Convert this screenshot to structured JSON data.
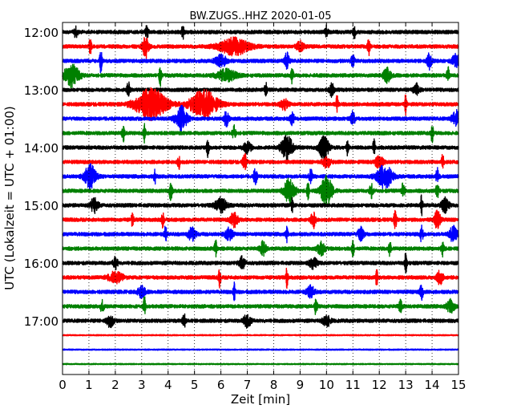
{
  "chart_data": {
    "type": "line",
    "title": "BW.ZUGS..HHZ 2020-01-05",
    "xlabel": "Zeit  [min]",
    "ylabel": "UTC (Lokalzeit = UTC + 01:00)",
    "xlim": [
      0,
      15
    ],
    "x_ticks": [
      "0",
      "1",
      "2",
      "3",
      "4",
      "5",
      "6",
      "7",
      "8",
      "9",
      "10",
      "11",
      "12",
      "13",
      "14",
      "15"
    ],
    "y_ticks": [
      "12:00",
      "13:00",
      "14:00",
      "15:00",
      "16:00",
      "17:00"
    ],
    "grid": "vertical dotted lines at each minute",
    "colors": [
      "#000000",
      "#ff0000",
      "#0000ff",
      "#008000"
    ],
    "rows": [
      {
        "start": "12:00",
        "color": "#000000",
        "events": [
          [
            4.55,
            1.9,
            0.03
          ],
          [
            3.2,
            1.2,
            0.04
          ],
          [
            10.0,
            1.0,
            0.04
          ],
          [
            11.05,
            1.5,
            0.03
          ],
          [
            0.5,
            0.9,
            0.05
          ]
        ]
      },
      {
        "start": "12:15",
        "color": "#ff0000",
        "events": [
          [
            3.15,
            1.9,
            0.08
          ],
          [
            1.05,
            1.6,
            0.03
          ],
          [
            6.5,
            1.4,
            0.4
          ],
          [
            11.6,
            1.6,
            0.03
          ],
          [
            9.0,
            0.9,
            0.1
          ]
        ]
      },
      {
        "start": "12:30",
        "color": "#0000ff",
        "events": [
          [
            1.45,
            2.1,
            0.03
          ],
          [
            8.5,
            1.4,
            0.06
          ],
          [
            13.9,
            1.4,
            0.06
          ],
          [
            6.0,
            1.0,
            0.15
          ],
          [
            11.0,
            1.0,
            0.05
          ],
          [
            14.9,
            1.2,
            0.1
          ]
        ]
      },
      {
        "start": "12:45",
        "color": "#008000",
        "events": [
          [
            0.35,
            1.9,
            0.2
          ],
          [
            3.7,
            1.8,
            0.03
          ],
          [
            8.7,
            1.4,
            0.03
          ],
          [
            12.3,
            1.2,
            0.1
          ],
          [
            14.6,
            1.8,
            0.03
          ],
          [
            6.2,
            1.0,
            0.25
          ]
        ]
      },
      {
        "start": "13:00",
        "color": "#000000",
        "events": [
          [
            2.5,
            1.5,
            0.04
          ],
          [
            7.7,
            1.3,
            0.03
          ],
          [
            10.2,
            1.1,
            0.06
          ],
          [
            13.4,
            1.0,
            0.08
          ]
        ]
      },
      {
        "start": "13:15",
        "color": "#ff0000",
        "events": [
          [
            3.35,
            2.7,
            0.4
          ],
          [
            5.35,
            2.4,
            0.35
          ],
          [
            10.4,
            1.5,
            0.03
          ],
          [
            13.0,
            1.7,
            0.03
          ],
          [
            8.4,
            0.9,
            0.1
          ]
        ]
      },
      {
        "start": "13:30",
        "color": "#0000ff",
        "events": [
          [
            4.5,
            2.1,
            0.15
          ],
          [
            6.2,
            1.4,
            0.06
          ],
          [
            8.7,
            1.3,
            0.05
          ],
          [
            11.0,
            1.2,
            0.06
          ],
          [
            14.9,
            1.4,
            0.1
          ]
        ]
      },
      {
        "start": "13:45",
        "color": "#008000",
        "events": [
          [
            2.3,
            1.7,
            0.03
          ],
          [
            3.1,
            1.5,
            0.03
          ],
          [
            6.5,
            1.2,
            0.05
          ],
          [
            14.0,
            1.7,
            0.03
          ]
        ]
      },
      {
        "start": "14:00",
        "color": "#000000",
        "events": [
          [
            8.5,
            2.1,
            0.15
          ],
          [
            9.9,
            2.1,
            0.12
          ],
          [
            5.5,
            1.6,
            0.03
          ],
          [
            11.8,
            1.5,
            0.03
          ],
          [
            10.8,
            1.3,
            0.03
          ],
          [
            7.0,
            1.0,
            0.1
          ]
        ]
      },
      {
        "start": "14:15",
        "color": "#ff0000",
        "events": [
          [
            4.4,
            1.6,
            0.03
          ],
          [
            6.9,
            1.4,
            0.05
          ],
          [
            12.0,
            1.2,
            0.1
          ],
          [
            14.4,
            1.3,
            0.03
          ],
          [
            10.0,
            1.0,
            0.1
          ]
        ]
      },
      {
        "start": "14:30",
        "color": "#0000ff",
        "events": [
          [
            1.05,
            2.0,
            0.15
          ],
          [
            12.2,
            2.0,
            0.2
          ],
          [
            3.5,
            1.5,
            0.03
          ],
          [
            7.3,
            1.3,
            0.05
          ],
          [
            9.4,
            1.3,
            0.04
          ],
          [
            14.2,
            1.4,
            0.04
          ]
        ]
      },
      {
        "start": "14:45",
        "color": "#008000",
        "events": [
          [
            10.0,
            2.6,
            0.15
          ],
          [
            8.6,
            2.1,
            0.15
          ],
          [
            4.1,
            1.6,
            0.04
          ],
          [
            9.3,
            1.6,
            0.03
          ],
          [
            12.9,
            1.4,
            0.04
          ],
          [
            14.2,
            1.5,
            0.04
          ],
          [
            11.7,
            1.2,
            0.05
          ]
        ]
      },
      {
        "start": "15:00",
        "color": "#000000",
        "events": [
          [
            1.2,
            1.2,
            0.1
          ],
          [
            6.0,
            1.2,
            0.15
          ],
          [
            8.7,
            1.6,
            0.03
          ],
          [
            13.6,
            1.7,
            0.03
          ],
          [
            14.5,
            1.2,
            0.1
          ]
        ]
      },
      {
        "start": "15:15",
        "color": "#ff0000",
        "events": [
          [
            2.65,
            1.5,
            0.03
          ],
          [
            3.8,
            1.6,
            0.03
          ],
          [
            6.5,
            1.2,
            0.1
          ],
          [
            9.5,
            1.5,
            0.06
          ],
          [
            12.6,
            1.4,
            0.04
          ],
          [
            14.2,
            1.6,
            0.08
          ]
        ]
      },
      {
        "start": "15:30",
        "color": "#0000ff",
        "events": [
          [
            3.9,
            1.5,
            0.03
          ],
          [
            4.9,
            1.1,
            0.1
          ],
          [
            6.3,
            1.0,
            0.1
          ],
          [
            8.5,
            1.3,
            0.03
          ],
          [
            11.3,
            1.2,
            0.08
          ],
          [
            13.6,
            1.3,
            0.04
          ],
          [
            14.8,
            1.3,
            0.1
          ]
        ]
      },
      {
        "start": "15:45",
        "color": "#008000",
        "events": [
          [
            5.8,
            1.6,
            0.03
          ],
          [
            7.6,
            1.2,
            0.08
          ],
          [
            11.0,
            1.5,
            0.03
          ],
          [
            12.4,
            1.5,
            0.03
          ],
          [
            14.4,
            1.3,
            0.04
          ],
          [
            9.8,
            1.1,
            0.1
          ]
        ]
      },
      {
        "start": "16:00",
        "color": "#000000",
        "events": [
          [
            13.0,
            1.8,
            0.03
          ],
          [
            2.0,
            1.1,
            0.06
          ],
          [
            6.8,
            1.0,
            0.08
          ],
          [
            9.5,
            0.9,
            0.1
          ]
        ]
      },
      {
        "start": "16:15",
        "color": "#ff0000",
        "events": [
          [
            5.95,
            1.6,
            0.03
          ],
          [
            8.5,
            1.6,
            0.03
          ],
          [
            11.9,
            1.4,
            0.03
          ],
          [
            14.3,
            1.2,
            0.08
          ],
          [
            2.0,
            0.9,
            0.2
          ]
        ]
      },
      {
        "start": "16:30",
        "color": "#0000ff",
        "events": [
          [
            6.5,
            1.6,
            0.03
          ],
          [
            13.6,
            1.4,
            0.04
          ],
          [
            9.4,
            1.0,
            0.1
          ],
          [
            3.0,
            0.9,
            0.1
          ]
        ]
      },
      {
        "start": "16:45",
        "color": "#008000",
        "events": [
          [
            3.1,
            1.7,
            0.03
          ],
          [
            9.6,
            1.8,
            0.03
          ],
          [
            1.5,
            1.0,
            0.05
          ],
          [
            12.8,
            1.0,
            0.05
          ],
          [
            14.7,
            1.1,
            0.1
          ]
        ]
      },
      {
        "start": "17:00",
        "color": "#000000",
        "events": [
          [
            1.8,
            1.0,
            0.1
          ],
          [
            4.6,
            1.2,
            0.05
          ],
          [
            7.0,
            1.1,
            0.1
          ],
          [
            10.0,
            1.0,
            0.1
          ]
        ]
      },
      {
        "start": "17:15",
        "color": "#ff0000",
        "events": []
      },
      {
        "start": "17:30",
        "color": "#0000ff",
        "events": []
      },
      {
        "start": "17:45",
        "color": "#008000",
        "events": []
      }
    ]
  }
}
